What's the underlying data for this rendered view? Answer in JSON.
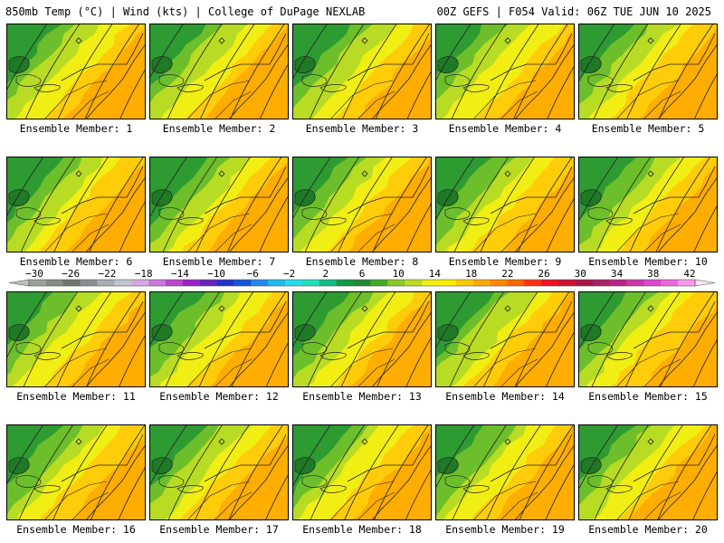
{
  "header": {
    "left_title": "850mb Temp (°C) | Wind (kts) | College of DuPage NEXLAB",
    "right_title": "00Z GEFS | F054 Valid: 06Z TUE JUN 10 2025"
  },
  "caption_prefix": "Ensemble Member:",
  "members": [
    {
      "label": "Ensemble Member: 1"
    },
    {
      "label": "Ensemble Member: 2"
    },
    {
      "label": "Ensemble Member: 3"
    },
    {
      "label": "Ensemble Member: 4"
    },
    {
      "label": "Ensemble Member: 5"
    },
    {
      "label": "Ensemble Member: 6"
    },
    {
      "label": "Ensemble Member: 7"
    },
    {
      "label": "Ensemble Member: 8"
    },
    {
      "label": "Ensemble Member: 9"
    },
    {
      "label": "Ensemble Member: 10"
    },
    {
      "label": "Ensemble Member: 11"
    },
    {
      "label": "Ensemble Member: 12"
    },
    {
      "label": "Ensemble Member: 13"
    },
    {
      "label": "Ensemble Member: 14"
    },
    {
      "label": "Ensemble Member: 15"
    },
    {
      "label": "Ensemble Member: 16"
    },
    {
      "label": "Ensemble Member: 17"
    },
    {
      "label": "Ensemble Member: 18"
    },
    {
      "label": "Ensemble Member: 19"
    },
    {
      "label": "Ensemble Member: 20"
    }
  ],
  "colorbar": {
    "tick_labels": [
      "−30",
      "−26",
      "−22",
      "−18",
      "−14",
      "−10",
      "−6",
      "−2",
      "2",
      "6",
      "10",
      "14",
      "18",
      "22",
      "26",
      "30",
      "34",
      "38",
      "42"
    ],
    "colors": [
      "#9aa39a",
      "#848c84",
      "#6e766e",
      "#8a8f95",
      "#a7adb5",
      "#c0c6cf",
      "#d9a6e6",
      "#cc77dd",
      "#bb44cc",
      "#9a22cc",
      "#6622bb",
      "#2233cc",
      "#1155dd",
      "#2288ee",
      "#22bbee",
      "#22ddee",
      "#22ddbb",
      "#11bb88",
      "#119944",
      "#228833",
      "#44aa22",
      "#88cc22",
      "#bbdd22",
      "#eeee11",
      "#ffee00",
      "#ffcc00",
      "#ffaa00",
      "#ff8800",
      "#ff6600",
      "#ff3311",
      "#ee1122",
      "#cc1133",
      "#aa1144",
      "#aa2266",
      "#bb2288",
      "#cc33aa",
      "#dd44cc",
      "#ee66dd",
      "#ff99ee"
    ]
  },
  "colors": {
    "cold_green": "#2e9a32",
    "mid_green": "#6cbf2a",
    "lime": "#b8dc24",
    "yellow": "#f1ee14",
    "gold": "#ffcc0a",
    "orange": "#ffad00",
    "contour": "#222222"
  }
}
